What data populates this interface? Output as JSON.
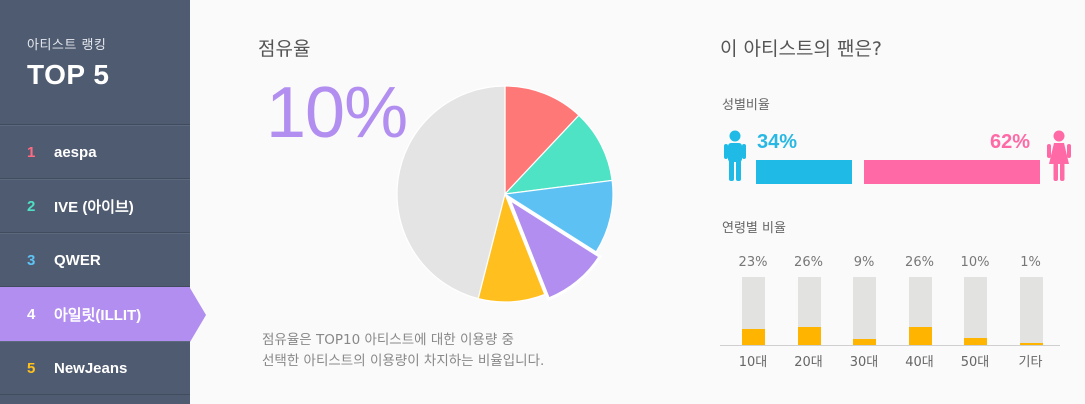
{
  "sidebar": {
    "subtitle": "아티스트 랭킹",
    "title": "TOP 5",
    "items": [
      {
        "rank": "1",
        "name": "aespa",
        "color": "#ff6b81",
        "active": false
      },
      {
        "rank": "2",
        "name": "IVE (아이브)",
        "color": "#4fe0c4",
        "active": false
      },
      {
        "rank": "3",
        "name": "QWER",
        "color": "#5ec3f5",
        "active": false
      },
      {
        "rank": "4",
        "name": "아일릿(ILLIT)",
        "color": "#ffffff",
        "active": true
      },
      {
        "rank": "5",
        "name": "NewJeans",
        "color": "#ffc21c",
        "active": false
      }
    ]
  },
  "share": {
    "title": "점유율",
    "percent": "10%",
    "description_line1": "점유율은 TOP10 아티스트에 대한 이용량 중",
    "description_line2": "선택한 아티스트의 이용량이 차지하는 비율입니다."
  },
  "pie_slices": [
    {
      "value": 12,
      "color": "#ff7878",
      "exploded": false,
      "name": "pie-slice-1"
    },
    {
      "value": 11,
      "color": "#4ee3c4",
      "exploded": false,
      "name": "pie-slice-2"
    },
    {
      "value": 11,
      "color": "#5ec1f3",
      "exploded": false,
      "name": "pie-slice-3"
    },
    {
      "value": 10,
      "color": "#b18ef0",
      "exploded": true,
      "name": "pie-slice-4"
    },
    {
      "value": 10,
      "color": "#ffbf1f",
      "exploded": false,
      "name": "pie-slice-5"
    },
    {
      "value": 46,
      "color": "#e4e4e4",
      "exploded": false,
      "name": "pie-slice-rest"
    }
  ],
  "fans": {
    "title": "이 아티스트의 팬은?",
    "gender": {
      "label": "성별비율",
      "male_pct": "34%",
      "female_pct": "62%",
      "male_value": 34,
      "female_value": 62,
      "male_color": "#1fbbe6",
      "female_color": "#ff6aa6",
      "male_icon": "male-person-icon",
      "female_icon": "female-person-icon"
    },
    "age": {
      "label": "연령별 비율",
      "fill_color": "#ffb400",
      "groups": [
        {
          "label": "10대",
          "pct": "23%",
          "value": 23
        },
        {
          "label": "20대",
          "pct": "26%",
          "value": 26
        },
        {
          "label": "30대",
          "pct": "9%",
          "value": 9
        },
        {
          "label": "40대",
          "pct": "26%",
          "value": 26
        },
        {
          "label": "50대",
          "pct": "10%",
          "value": 10
        },
        {
          "label": "기타",
          "pct": "1%",
          "value": 1
        }
      ]
    }
  }
}
